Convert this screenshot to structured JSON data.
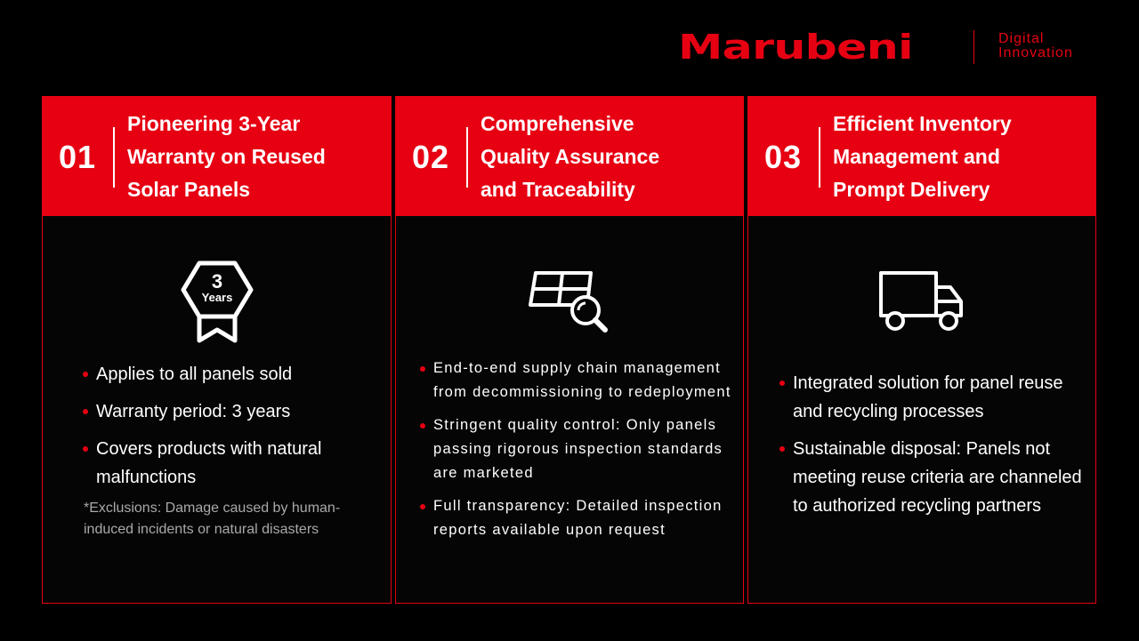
{
  "brand": {
    "logo": "Marubeni",
    "sub_line1": "Digital",
    "sub_line2": "Innovation",
    "accent_color": "#e60012"
  },
  "cards": [
    {
      "number": "01",
      "title_lines": [
        "Pioneering 3-Year",
        "Warranty on Reused",
        "Solar Panels"
      ],
      "icon": "warranty-badge-icon",
      "badge_number": "3",
      "badge_text": "Years",
      "bullets": [
        "Applies to all panels sold",
        "Warranty period: 3 years",
        "Covers products with natural malfunctions"
      ],
      "note": "*Exclusions: Damage caused by human-induced incidents or natural disasters"
    },
    {
      "number": "02",
      "title_lines": [
        "Comprehensive",
        "Quality Assurance",
        "and Traceability"
      ],
      "icon": "solar-panel-inspection-icon",
      "bullets": [
        "End-to-end supply chain management from decommissioning to redeployment",
        "Stringent quality control: Only panels passing rigorous inspection standards are marketed",
        "Full transparency: Detailed inspection reports available upon request"
      ]
    },
    {
      "number": "03",
      "title_lines": [
        "Efficient Inventory",
        "Management and",
        "Prompt Delivery"
      ],
      "icon": "delivery-truck-icon",
      "bullets": [
        "Integrated solution for panel reuse and recycling processes",
        "Sustainable disposal: Panels not meeting reuse criteria are channeled to authorized recycling partners"
      ]
    }
  ]
}
